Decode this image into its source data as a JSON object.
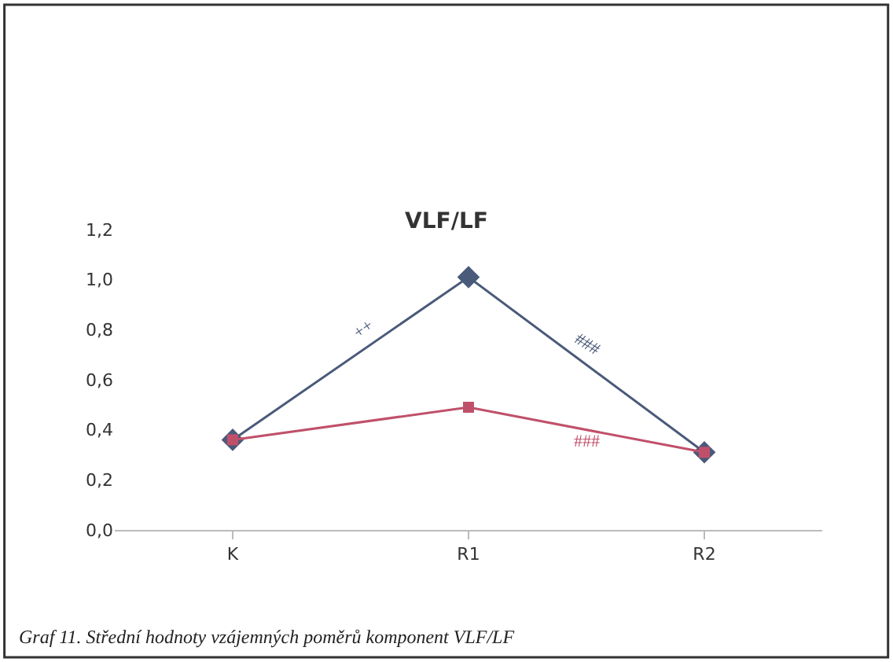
{
  "chart_data": {
    "type": "line",
    "title": "VLF/LF",
    "categories": [
      "K",
      "R1",
      "R2"
    ],
    "series": [
      {
        "color": "#4a5a7a",
        "values": [
          0.36,
          1.01,
          0.31
        ],
        "marker": "diamond"
      },
      {
        "color": "#c0506a",
        "values": [
          0.36,
          0.49,
          0.31
        ],
        "marker": "square"
      }
    ],
    "ylim": [
      0,
      1.2
    ],
    "yticks": [
      {
        "value": 0,
        "label": "0,0"
      },
      {
        "value": 0.2,
        "label": "0,2"
      },
      {
        "value": 0.4,
        "label": "0,4"
      },
      {
        "value": 0.6,
        "label": "0,6"
      },
      {
        "value": 0.8,
        "label": "0,8"
      },
      {
        "value": 1.0,
        "label": "1,0"
      },
      {
        "value": 1.2,
        "label": "1,2"
      }
    ],
    "grid": false,
    "annotations": [
      "++",
      "###",
      "###",
      "Graf 11. Střední hodnoty vzájemných poměrů komponent VLF/LF"
    ]
  }
}
